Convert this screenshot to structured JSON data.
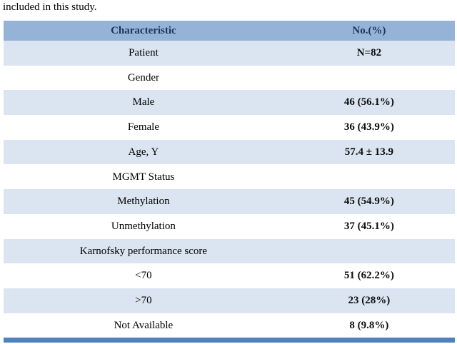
{
  "page": {
    "intro_text": "included in this study."
  },
  "table": {
    "header": {
      "characteristic": "Characteristic",
      "value": "No.(%)"
    },
    "rows": [
      {
        "label": "Patient",
        "value": "N=82"
      },
      {
        "label": "Gender",
        "value": ""
      },
      {
        "label": "Male",
        "value": "46 (56.1%)"
      },
      {
        "label": "Female",
        "value": "36 (43.9%)"
      },
      {
        "label": "Age, Y",
        "value": "57.4 ± 13.9"
      },
      {
        "label": "MGMT Status",
        "value": ""
      },
      {
        "label": "Methylation",
        "value": "45 (54.9%)"
      },
      {
        "label": "Unmethylation",
        "value": "37 (45.1%)"
      },
      {
        "label": "Karnofsky performance score",
        "value": ""
      },
      {
        "label": "<70",
        "value": "51 (62.2%)"
      },
      {
        "label": ">70",
        "value": "23 (28%)"
      },
      {
        "label": "Not Available",
        "value": "8 (9.8%)"
      }
    ],
    "colors": {
      "header_bg": "#95B3D7",
      "band_bg": "#DBE5F1",
      "white_bg": "#FFFFFF",
      "footer_strip": "#4F81BD"
    }
  }
}
